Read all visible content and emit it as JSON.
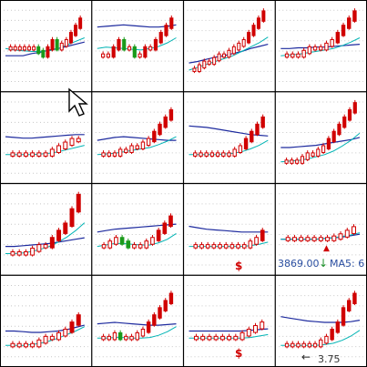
{
  "grid": {
    "rows": 4,
    "cols": 4
  },
  "colors": {
    "up": "#d00000",
    "down": "#1a9a1a",
    "neutral": "#222222",
    "ma_long": "#1d2a9e",
    "ma_mid": "#00b4b4",
    "ma_short": "#b0202a",
    "ma_ref": "#00a000",
    "border": "#000000",
    "dotgrid": "#c8c8c8"
  },
  "readouts": {
    "price": "3869.00",
    "ma5": "MA5: 6",
    "bottom_value": "3.75",
    "s_marker": "$",
    "down_arrow": "↓",
    "bottom_arrow": "←",
    "flag_arrow": "▲"
  },
  "chart_data": [
    {
      "type": "candlestick",
      "panel": "r1c1",
      "candles": [
        5,
        5,
        5,
        5,
        5,
        5,
        4.5,
        4,
        5,
        6,
        5,
        5.5,
        6,
        7,
        8,
        9
      ],
      "ma_long": [
        4,
        4,
        4,
        4.3,
        4.5,
        4.8,
        5,
        5.3,
        5.6,
        5.9
      ],
      "ma_mid": [
        5,
        4.8,
        4.7,
        4.6,
        4.6,
        4.7,
        5,
        5.5,
        6,
        6.5
      ]
    },
    {
      "type": "candlestick",
      "panel": "r1c2",
      "candles": [
        4,
        4,
        5,
        6,
        5,
        5,
        4,
        4,
        5,
        5,
        6,
        7,
        8,
        9
      ],
      "ma_long": [
        8,
        8.1,
        8.2,
        8.3,
        8.2,
        8.1,
        8,
        8,
        8.1,
        8.3
      ],
      "ma_mid": [
        5,
        5.2,
        5.1,
        5,
        4.9,
        4.8,
        5,
        5.3,
        5.8,
        6.5
      ]
    },
    {
      "type": "candlestick",
      "panel": "r1c3",
      "candles": [
        2,
        2.5,
        3,
        3,
        3.5,
        4,
        4,
        4.5,
        5,
        5.5,
        6,
        7,
        8,
        9,
        10
      ],
      "ma_long": [
        3,
        3.2,
        3.5,
        3.8,
        4,
        4.3,
        4.6,
        5,
        5.3,
        5.6
      ],
      "ma_mid": [
        2,
        2.4,
        2.8,
        3.2,
        3.6,
        4,
        4.6,
        5.2,
        5.8,
        6.6
      ]
    },
    {
      "type": "candlestick",
      "panel": "r1c4",
      "candles": [
        4,
        4,
        4,
        4.5,
        5,
        5,
        5,
        5.5,
        6,
        7,
        8,
        9,
        10
      ],
      "ma_long": [
        5,
        5,
        5.1,
        5.1,
        5.2,
        5.2,
        5.3,
        5.4,
        5.5,
        5.6
      ],
      "ma_mid": [
        4,
        4.1,
        4.2,
        4.4,
        4.6,
        4.8,
        5,
        5.4,
        5.9,
        6.5
      ]
    },
    {
      "type": "candlestick",
      "panel": "r2c1",
      "candles": [
        3,
        3,
        3,
        3,
        3,
        3,
        3.5,
        4,
        4.5,
        5,
        5
      ],
      "ma_long": [
        5.5,
        5.4,
        5.3,
        5.3,
        5.4,
        5.5,
        5.6,
        5.7,
        5.8,
        5.8
      ],
      "ma_mid": [
        3,
        3,
        3,
        3,
        3.1,
        3.2,
        3.4,
        3.7,
        4,
        4.3
      ]
    },
    {
      "type": "candlestick",
      "panel": "r2c2",
      "candles": [
        3,
        3,
        3,
        3.5,
        3.5,
        4,
        4,
        4.5,
        5,
        6,
        7,
        8,
        9
      ],
      "ma_long": [
        5,
        5.2,
        5.4,
        5.5,
        5.4,
        5.3,
        5.2,
        5.1,
        5,
        5
      ],
      "ma_mid": [
        3,
        3.1,
        3.2,
        3.4,
        3.6,
        3.8,
        4,
        4.4,
        4.9,
        5.5
      ]
    },
    {
      "type": "candlestick",
      "panel": "r2c3",
      "candles": [
        3,
        3,
        3,
        3,
        3,
        3,
        3,
        3.5,
        4,
        5,
        6,
        7,
        8
      ],
      "ma_long": [
        7,
        6.9,
        6.8,
        6.6,
        6.4,
        6.2,
        6,
        5.8,
        5.7,
        5.6
      ],
      "ma_mid": [
        3,
        3,
        3,
        3,
        3.1,
        3.2,
        3.4,
        3.8,
        4.3,
        5
      ]
    },
    {
      "type": "candlestick",
      "panel": "r2c4",
      "candles": [
        2,
        2,
        2,
        2.5,
        3,
        3,
        3.5,
        4,
        5,
        6,
        7,
        8,
        9,
        10
      ],
      "ma_long": [
        4,
        4,
        4.1,
        4.2,
        4.3,
        4.5,
        4.7,
        4.9,
        5.1,
        5.4
      ],
      "ma_mid": [
        2,
        2.1,
        2.2,
        2.4,
        2.7,
        3,
        3.5,
        4.2,
        5,
        6
      ]
    },
    {
      "type": "candlestick",
      "panel": "r3c1",
      "candles": [
        2,
        2,
        2,
        2.5,
        3,
        3,
        4,
        5,
        6,
        8,
        10
      ],
      "ma_long": [
        3,
        3,
        3.1,
        3.2,
        3.3,
        3.4,
        3.6,
        3.8,
        4,
        4.2
      ],
      "ma_mid": [
        2,
        2,
        2.1,
        2.3,
        2.6,
        3,
        3.6,
        4.3,
        5.2,
        6.3
      ]
    },
    {
      "type": "candlestick",
      "panel": "r3c2",
      "candles": [
        3,
        3.5,
        4,
        3.5,
        3,
        3,
        3,
        3.5,
        4,
        5,
        6,
        7
      ],
      "ma_long": [
        5,
        5.2,
        5.4,
        5.5,
        5.6,
        5.7,
        5.8,
        5.9,
        6,
        6.1
      ],
      "ma_mid": [
        3,
        3.2,
        3.4,
        3.4,
        3.3,
        3.2,
        3.2,
        3.5,
        4,
        4.8
      ]
    },
    {
      "type": "candlestick",
      "panel": "r3c3",
      "candles": [
        3,
        3,
        3,
        3,
        3,
        3,
        3,
        3,
        3,
        3.5,
        4,
        5
      ],
      "ma_long": [
        5.8,
        5.6,
        5.4,
        5.3,
        5.2,
        5.1,
        5,
        5,
        5,
        5
      ],
      "ma_mid": [
        3,
        3,
        3,
        3,
        3,
        3,
        3,
        3.1,
        3.3,
        3.6
      ]
    },
    {
      "type": "candlestick",
      "panel": "r3c4",
      "candles": [
        4,
        4,
        4,
        4,
        4,
        4,
        4,
        4.2,
        4.5,
        5,
        5.5
      ],
      "ma_long": [
        4,
        4,
        4,
        4,
        4,
        4.1,
        4.2,
        4.3,
        4.5,
        4.7
      ],
      "ma_mid": [
        4,
        4,
        4,
        4,
        4,
        4.1,
        4.2,
        4.4,
        4.6,
        4.9
      ]
    },
    {
      "type": "candlestick",
      "panel": "r4c1",
      "candles": [
        2,
        2,
        2,
        2,
        2.5,
        3,
        3,
        3.5,
        4,
        5,
        6
      ],
      "ma_long": [
        4,
        4,
        3.9,
        3.8,
        3.8,
        3.9,
        4,
        4.2,
        4.5,
        4.8
      ],
      "ma_mid": [
        2,
        2,
        2,
        2.1,
        2.3,
        2.6,
        3,
        3.5,
        4,
        4.6
      ]
    },
    {
      "type": "candlestick",
      "panel": "r4c2",
      "candles": [
        3,
        3,
        3.5,
        3,
        3,
        3,
        3.5,
        4,
        5,
        6,
        7,
        8,
        9
      ],
      "ma_long": [
        5,
        5.1,
        5.2,
        5.1,
        5,
        4.9,
        4.8,
        4.8,
        4.9,
        5
      ],
      "ma_mid": [
        3,
        3,
        3.1,
        3.1,
        3,
        3,
        3.1,
        3.4,
        3.9,
        4.6
      ]
    },
    {
      "type": "candlestick",
      "panel": "r4c3",
      "candles": [
        3,
        3,
        3,
        3,
        3,
        3,
        3,
        3.5,
        4,
        4.5,
        5
      ],
      "ma_long": [
        4,
        4,
        4,
        4,
        4,
        4,
        4,
        4.1,
        4.2,
        4.3
      ],
      "ma_mid": [
        3,
        3,
        3,
        3,
        3,
        3,
        3,
        3.1,
        3.3,
        3.5
      ]
    },
    {
      "type": "candlestick",
      "panel": "r4c4",
      "candles": [
        2,
        2,
        2,
        2,
        2,
        2,
        2.5,
        3,
        4,
        5,
        7,
        8,
        9
      ],
      "ma_long": [
        6,
        5.8,
        5.6,
        5.4,
        5.3,
        5.2,
        5.2,
        5.2,
        5.3,
        5.5
      ],
      "ma_mid": [
        2,
        2,
        2,
        2,
        2,
        2.1,
        2.3,
        2.7,
        3.3,
        4.1
      ]
    }
  ]
}
